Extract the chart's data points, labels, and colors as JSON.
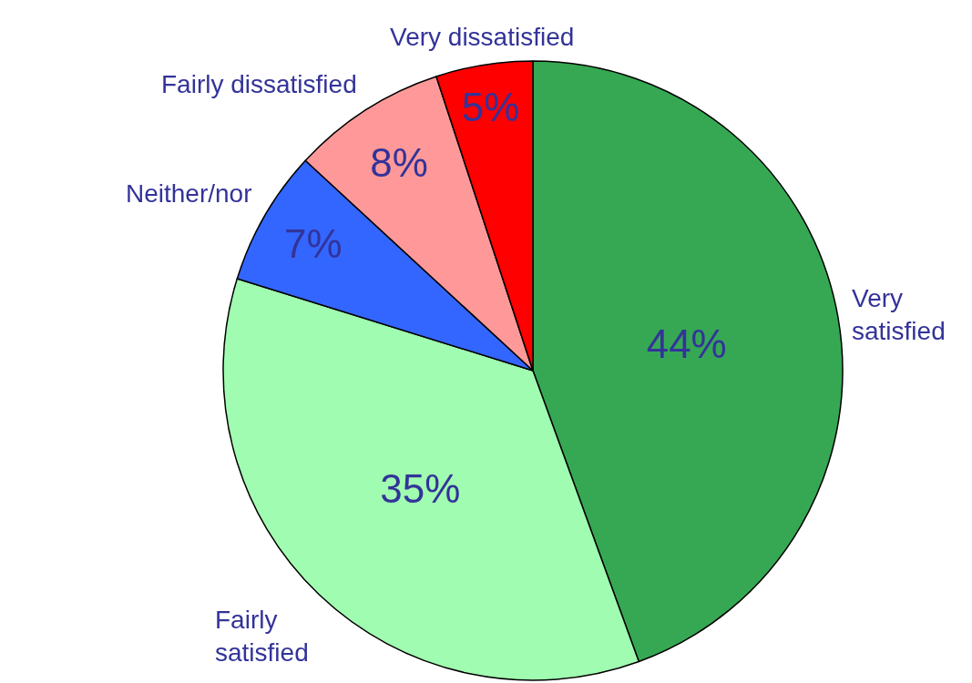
{
  "chart_data": {
    "type": "pie",
    "categories": [
      "Very satisfied",
      "Fairly satisfied",
      "Neither/nor",
      "Fairly dissatisfied",
      "Very dissatisfied"
    ],
    "values": [
      44,
      35,
      7,
      8,
      5
    ],
    "value_labels": [
      "44%",
      "35%",
      "7%",
      "8%",
      "5%"
    ],
    "colors": [
      "#36a854",
      "#a0fcb0",
      "#3366ff",
      "#ff9999",
      "#ff0000"
    ]
  }
}
